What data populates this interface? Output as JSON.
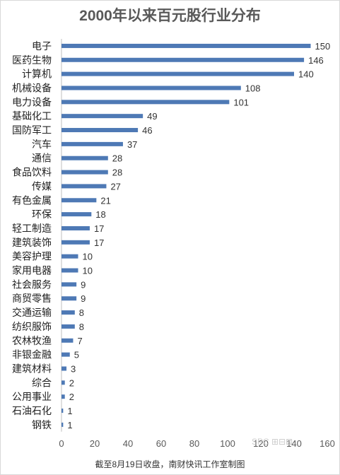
{
  "chart_data": {
    "type": "bar",
    "orientation": "horizontal",
    "title": "2000年以来百元股行业分布",
    "categories": [
      "电子",
      "医药生物",
      "计算机",
      "机械设备",
      "电力设备",
      "基础化工",
      "国防军工",
      "汽车",
      "通信",
      "食品饮料",
      "传媒",
      "有色金属",
      "环保",
      "轻工制造",
      "建筑装饰",
      "美容护理",
      "家用电器",
      "社会服务",
      "商贸零售",
      "交通运输",
      "纺织服饰",
      "农林牧渔",
      "非银金融",
      "建筑材料",
      "综合",
      "公用事业",
      "石油石化",
      "钢铁"
    ],
    "values": [
      150,
      146,
      140,
      108,
      101,
      49,
      46,
      37,
      28,
      28,
      27,
      21,
      18,
      17,
      17,
      10,
      10,
      9,
      9,
      8,
      8,
      7,
      5,
      3,
      2,
      2,
      1,
      1
    ],
    "xlim": [
      0,
      160
    ],
    "xticks": [
      "0",
      "20",
      "40",
      "60",
      "80",
      "100",
      "120",
      "140",
      "160"
    ],
    "grid": false,
    "bar_color": "#4e79b5"
  },
  "footnote": "截至8月19日收盘，南财快讯工作室制图"
}
